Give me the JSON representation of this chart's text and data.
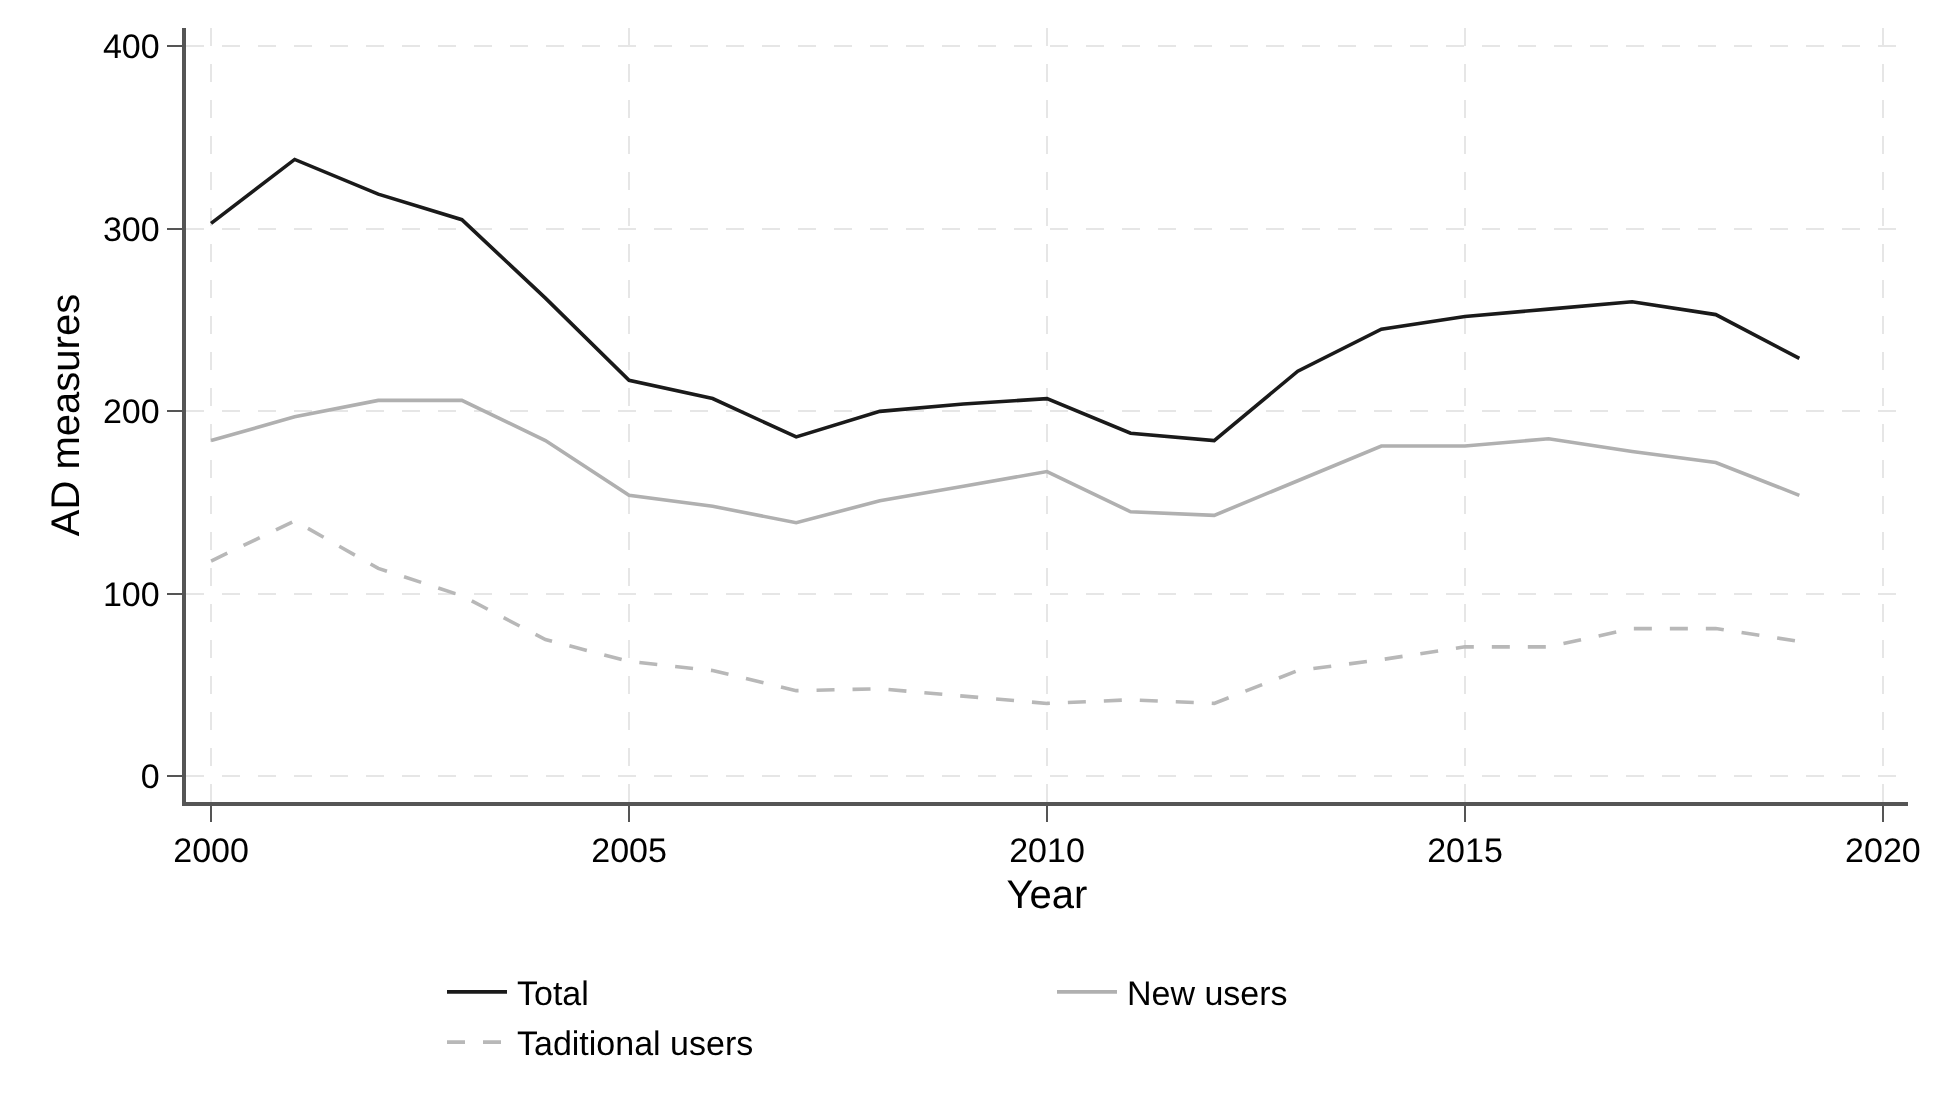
{
  "chart_data": {
    "type": "line",
    "xlabel": "Year",
    "ylabel": "AD measures",
    "x": [
      2000,
      2001,
      2002,
      2003,
      2004,
      2005,
      2006,
      2007,
      2008,
      2009,
      2010,
      2011,
      2012,
      2013,
      2014,
      2015,
      2016,
      2017,
      2018,
      2019
    ],
    "series": [
      {
        "name": "Total",
        "color": "#1a1a1a",
        "line_style": "solid",
        "values": [
          303,
          338,
          319,
          305,
          262,
          217,
          207,
          186,
          200,
          204,
          207,
          188,
          184,
          222,
          245,
          252,
          256,
          260,
          253,
          229
        ]
      },
      {
        "name": "New users",
        "color": "#b0b0b0",
        "line_style": "solid",
        "values": [
          184,
          197,
          206,
          206,
          184,
          154,
          148,
          139,
          151,
          159,
          167,
          145,
          143,
          162,
          181,
          181,
          185,
          178,
          172,
          154
        ]
      },
      {
        "name": "Taditional users",
        "color": "#b8b8b8",
        "line_style": "dashed",
        "values": [
          118,
          140,
          114,
          99,
          75,
          63,
          58,
          47,
          48,
          44,
          40,
          42,
          40,
          58,
          64,
          71,
          71,
          81,
          81,
          74
        ]
      }
    ],
    "xlim": [
      1999.7,
      2020.3
    ],
    "xticks": [
      2000,
      2005,
      2010,
      2015,
      2020
    ],
    "ylim": [
      -14,
      410
    ],
    "yticks": [
      0,
      100,
      200,
      300,
      400
    ],
    "grid": true,
    "legend": "bottom",
    "marker": "none"
  }
}
